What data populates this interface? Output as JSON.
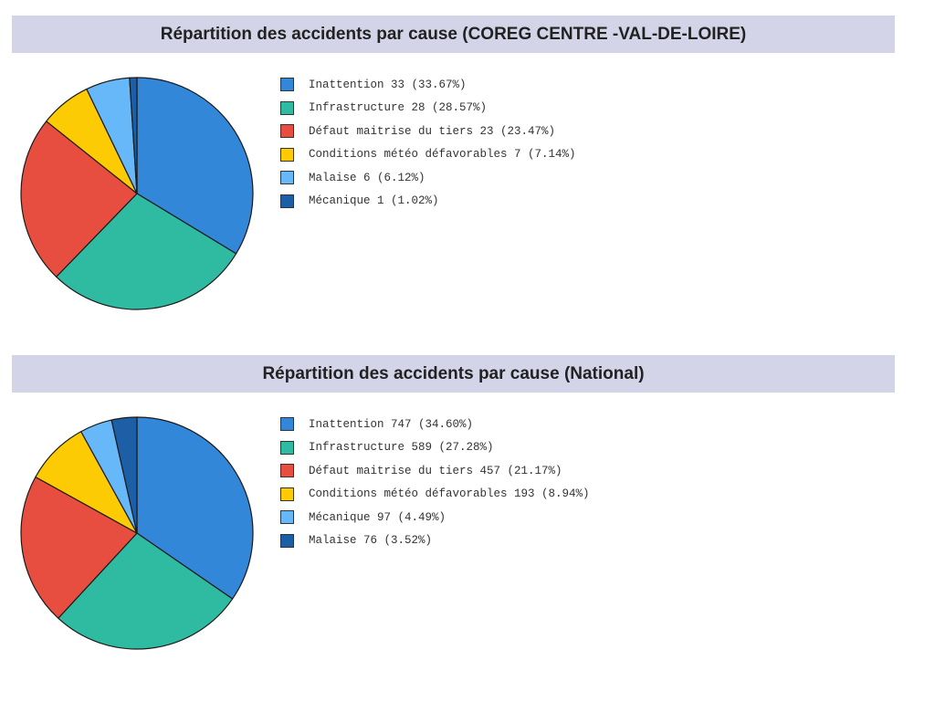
{
  "palette": [
    "#3287d9",
    "#2fbba2",
    "#e84e40",
    "#fccb03",
    "#66b8f8",
    "#1c5fa6"
  ],
  "chart_data": [
    {
      "type": "pie",
      "title": "Répartition des accidents par cause (COREG CENTRE -VAL-DE-LOIRE)",
      "slices": [
        {
          "label": "Inattention",
          "value": 33,
          "percent": "33.67%",
          "color": "#3287d9"
        },
        {
          "label": "Infrastructure",
          "value": 28,
          "percent": "28.57%",
          "color": "#2fbba2"
        },
        {
          "label": "Défaut maitrise du tiers",
          "value": 23,
          "percent": "23.47%",
          "color": "#e84e40"
        },
        {
          "label": "Conditions météo défavorables",
          "value": 7,
          "percent": "7.14%",
          "color": "#fccb03"
        },
        {
          "label": "Malaise",
          "value": 6,
          "percent": "6.12%",
          "color": "#66b8f8"
        },
        {
          "label": "Mécanique",
          "value": 1,
          "percent": "1.02%",
          "color": "#1c5fa6"
        }
      ],
      "legend_placement": "right",
      "start_angle": "top",
      "direction": "clockwise"
    },
    {
      "type": "pie",
      "title": "Répartition des accidents par cause (National)",
      "slices": [
        {
          "label": "Inattention",
          "value": 747,
          "percent": "34.60%",
          "color": "#3287d9"
        },
        {
          "label": "Infrastructure",
          "value": 589,
          "percent": "27.28%",
          "color": "#2fbba2"
        },
        {
          "label": "Défaut maitrise du tiers",
          "value": 457,
          "percent": "21.17%",
          "color": "#e84e40"
        },
        {
          "label": "Conditions météo défavorables",
          "value": 193,
          "percent": "8.94%",
          "color": "#fccb03"
        },
        {
          "label": "Mécanique",
          "value": 97,
          "percent": "4.49%",
          "color": "#66b8f8"
        },
        {
          "label": "Malaise",
          "value": 76,
          "percent": "3.52%",
          "color": "#1c5fa6"
        }
      ],
      "legend_placement": "right",
      "start_angle": "top",
      "direction": "clockwise"
    }
  ]
}
